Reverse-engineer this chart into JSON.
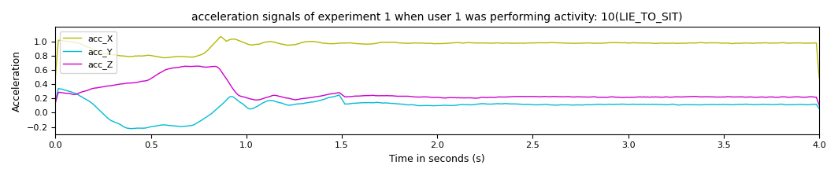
{
  "title": "acceleration signals of experiment 1 when user 1 was performing activity: 10(LIE_TO_SIT)",
  "xlabel": "Time in seconds (s)",
  "ylabel": "Acceleration",
  "xlim": [
    0,
    4.0
  ],
  "ylim": [
    -0.3,
    1.2
  ],
  "yticks": [
    -0.2,
    0.0,
    0.2,
    0.4,
    0.6,
    0.8,
    1.0
  ],
  "colors": {
    "acc_X": "#b5b800",
    "acc_Y": "#00bcd4",
    "acc_Z": "#cc00cc"
  },
  "legend_labels": [
    "acc_X",
    "acc_Y",
    "acc_Z"
  ],
  "figsize": [
    10.64,
    2.24
  ],
  "dpi": 100
}
